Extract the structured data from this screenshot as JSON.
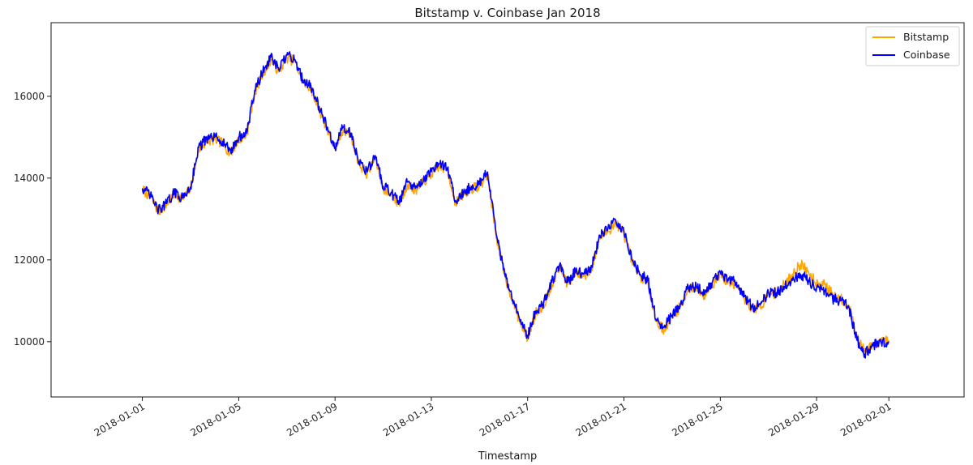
{
  "chart_data": {
    "type": "line",
    "title": "Bitstamp v. Coinbase Jan 2018",
    "xlabel": "Timestamp",
    "ylabel": "",
    "xlim": [
      "2017-12-28T05:00",
      "2018-02-04T03:00"
    ],
    "ylim": [
      8650,
      17800
    ],
    "x_ticks": [
      "2018-01-01",
      "2018-01-05",
      "2018-01-09",
      "2018-01-13",
      "2018-01-17",
      "2018-01-21",
      "2018-01-25",
      "2018-01-29",
      "2018-02-01"
    ],
    "y_ticks": [
      10000,
      12000,
      14000,
      16000
    ],
    "grid": false,
    "legend_position": "top-right",
    "series": [
      {
        "name": "Bitstamp",
        "color": "#FFA500",
        "x": [
          "2018-01-01T00:00",
          "2018-01-01T08:00",
          "2018-01-01T16:00",
          "2018-01-02T00:00",
          "2018-01-02T08:00",
          "2018-01-02T16:00",
          "2018-01-03T00:00",
          "2018-01-03T08:00",
          "2018-01-03T16:00",
          "2018-01-04T00:00",
          "2018-01-04T08:00",
          "2018-01-04T16:00",
          "2018-01-05T00:00",
          "2018-01-05T08:00",
          "2018-01-05T16:00",
          "2018-01-06T00:00",
          "2018-01-06T08:00",
          "2018-01-06T16:00",
          "2018-01-07T00:00",
          "2018-01-07T08:00",
          "2018-01-07T16:00",
          "2018-01-08T00:00",
          "2018-01-08T08:00",
          "2018-01-08T16:00",
          "2018-01-09T00:00",
          "2018-01-09T08:00",
          "2018-01-09T16:00",
          "2018-01-10T00:00",
          "2018-01-10T08:00",
          "2018-01-10T16:00",
          "2018-01-11T00:00",
          "2018-01-11T08:00",
          "2018-01-11T16:00",
          "2018-01-12T00:00",
          "2018-01-12T08:00",
          "2018-01-12T16:00",
          "2018-01-13T00:00",
          "2018-01-13T08:00",
          "2018-01-13T16:00",
          "2018-01-14T00:00",
          "2018-01-14T08:00",
          "2018-01-14T16:00",
          "2018-01-15T00:00",
          "2018-01-15T08:00",
          "2018-01-15T16:00",
          "2018-01-16T00:00",
          "2018-01-16T08:00",
          "2018-01-16T16:00",
          "2018-01-17T00:00",
          "2018-01-17T08:00",
          "2018-01-17T16:00",
          "2018-01-18T00:00",
          "2018-01-18T08:00",
          "2018-01-18T16:00",
          "2018-01-19T00:00",
          "2018-01-19T08:00",
          "2018-01-19T16:00",
          "2018-01-20T00:00",
          "2018-01-20T08:00",
          "2018-01-20T16:00",
          "2018-01-21T00:00",
          "2018-01-21T08:00",
          "2018-01-21T16:00",
          "2018-01-22T00:00",
          "2018-01-22T08:00",
          "2018-01-22T16:00",
          "2018-01-23T00:00",
          "2018-01-23T08:00",
          "2018-01-23T16:00",
          "2018-01-24T00:00",
          "2018-01-24T08:00",
          "2018-01-24T16:00",
          "2018-01-25T00:00",
          "2018-01-25T08:00",
          "2018-01-25T16:00",
          "2018-01-26T00:00",
          "2018-01-26T08:00",
          "2018-01-26T16:00",
          "2018-01-27T00:00",
          "2018-01-27T08:00",
          "2018-01-27T16:00",
          "2018-01-28T00:00",
          "2018-01-28T08:00",
          "2018-01-28T16:00",
          "2018-01-29T00:00",
          "2018-01-29T08:00",
          "2018-01-29T16:00",
          "2018-01-30T00:00",
          "2018-01-30T08:00",
          "2018-01-30T16:00",
          "2018-01-31T00:00",
          "2018-01-31T08:00",
          "2018-01-31T16:00",
          "2018-02-01T00:00"
        ],
        "values": [
          13720,
          13550,
          13180,
          13350,
          13620,
          13480,
          13750,
          14700,
          14900,
          14950,
          14850,
          14600,
          14950,
          15050,
          16100,
          16550,
          16900,
          16600,
          16950,
          16850,
          16350,
          16200,
          15700,
          15200,
          14700,
          15200,
          15050,
          14350,
          14100,
          14500,
          13750,
          13600,
          13350,
          13850,
          13700,
          13900,
          14100,
          14300,
          14200,
          13400,
          13600,
          13750,
          13800,
          14100,
          12700,
          11700,
          11100,
          10500,
          10100,
          10700,
          10900,
          11400,
          11850,
          11400,
          11700,
          11600,
          11800,
          12550,
          12700,
          12900,
          12650,
          11950,
          11600,
          11450,
          10500,
          10300,
          10600,
          10850,
          11300,
          11300,
          11150,
          11400,
          11650,
          11450,
          11400,
          11050,
          10800,
          10850,
          11150,
          11200,
          11400,
          11650,
          11900,
          11700,
          11450,
          11400,
          11150,
          11050,
          10900,
          10100,
          9750,
          9900,
          10000,
          10030
        ]
      },
      {
        "name": "Coinbase",
        "color": "#0000FF",
        "x": [
          "2018-01-01T00:00",
          "2018-01-01T08:00",
          "2018-01-01T16:00",
          "2018-01-02T00:00",
          "2018-01-02T08:00",
          "2018-01-02T16:00",
          "2018-01-03T00:00",
          "2018-01-03T08:00",
          "2018-01-03T16:00",
          "2018-01-04T00:00",
          "2018-01-04T08:00",
          "2018-01-04T16:00",
          "2018-01-05T00:00",
          "2018-01-05T08:00",
          "2018-01-05T16:00",
          "2018-01-06T00:00",
          "2018-01-06T08:00",
          "2018-01-06T16:00",
          "2018-01-07T00:00",
          "2018-01-07T08:00",
          "2018-01-07T16:00",
          "2018-01-08T00:00",
          "2018-01-08T08:00",
          "2018-01-08T16:00",
          "2018-01-09T00:00",
          "2018-01-09T08:00",
          "2018-01-09T16:00",
          "2018-01-10T00:00",
          "2018-01-10T08:00",
          "2018-01-10T16:00",
          "2018-01-11T00:00",
          "2018-01-11T08:00",
          "2018-01-11T16:00",
          "2018-01-12T00:00",
          "2018-01-12T08:00",
          "2018-01-12T16:00",
          "2018-01-13T00:00",
          "2018-01-13T08:00",
          "2018-01-13T16:00",
          "2018-01-14T00:00",
          "2018-01-14T08:00",
          "2018-01-14T16:00",
          "2018-01-15T00:00",
          "2018-01-15T08:00",
          "2018-01-15T16:00",
          "2018-01-16T00:00",
          "2018-01-16T08:00",
          "2018-01-16T16:00",
          "2018-01-17T00:00",
          "2018-01-17T08:00",
          "2018-01-17T16:00",
          "2018-01-18T00:00",
          "2018-01-18T08:00",
          "2018-01-18T16:00",
          "2018-01-19T00:00",
          "2018-01-19T08:00",
          "2018-01-19T16:00",
          "2018-01-20T00:00",
          "2018-01-20T08:00",
          "2018-01-20T16:00",
          "2018-01-21T00:00",
          "2018-01-21T08:00",
          "2018-01-21T16:00",
          "2018-01-22T00:00",
          "2018-01-22T08:00",
          "2018-01-22T16:00",
          "2018-01-23T00:00",
          "2018-01-23T08:00",
          "2018-01-23T16:00",
          "2018-01-24T00:00",
          "2018-01-24T08:00",
          "2018-01-24T16:00",
          "2018-01-25T00:00",
          "2018-01-25T08:00",
          "2018-01-25T16:00",
          "2018-01-26T00:00",
          "2018-01-26T08:00",
          "2018-01-26T16:00",
          "2018-01-27T00:00",
          "2018-01-27T08:00",
          "2018-01-27T16:00",
          "2018-01-28T00:00",
          "2018-01-28T08:00",
          "2018-01-28T16:00",
          "2018-01-29T00:00",
          "2018-01-29T08:00",
          "2018-01-29T16:00",
          "2018-01-30T00:00",
          "2018-01-30T08:00",
          "2018-01-30T16:00",
          "2018-01-31T00:00",
          "2018-01-31T08:00",
          "2018-01-31T16:00",
          "2018-02-01T00:00"
        ],
        "values": [
          13750,
          13580,
          13210,
          13380,
          13650,
          13510,
          13780,
          14750,
          14950,
          15000,
          14900,
          14650,
          15000,
          15100,
          16150,
          16600,
          16950,
          16650,
          17000,
          16900,
          16400,
          16250,
          15750,
          15250,
          14750,
          15250,
          15100,
          14400,
          14150,
          14550,
          13800,
          13650,
          13400,
          13900,
          13750,
          13950,
          14150,
          14350,
          14250,
          13450,
          13650,
          13800,
          13850,
          14150,
          12750,
          11750,
          11150,
          10550,
          10150,
          10750,
          10950,
          11450,
          11900,
          11450,
          11750,
          11650,
          11850,
          12600,
          12750,
          12950,
          12700,
          12000,
          11650,
          11500,
          10550,
          10350,
          10650,
          10900,
          11350,
          11350,
          11200,
          11450,
          11700,
          11500,
          11450,
          11100,
          10850,
          10900,
          11200,
          11200,
          11350,
          11500,
          11650,
          11500,
          11300,
          11250,
          11050,
          11000,
          10850,
          10050,
          9700,
          9900,
          10000,
          10000
        ]
      }
    ]
  }
}
